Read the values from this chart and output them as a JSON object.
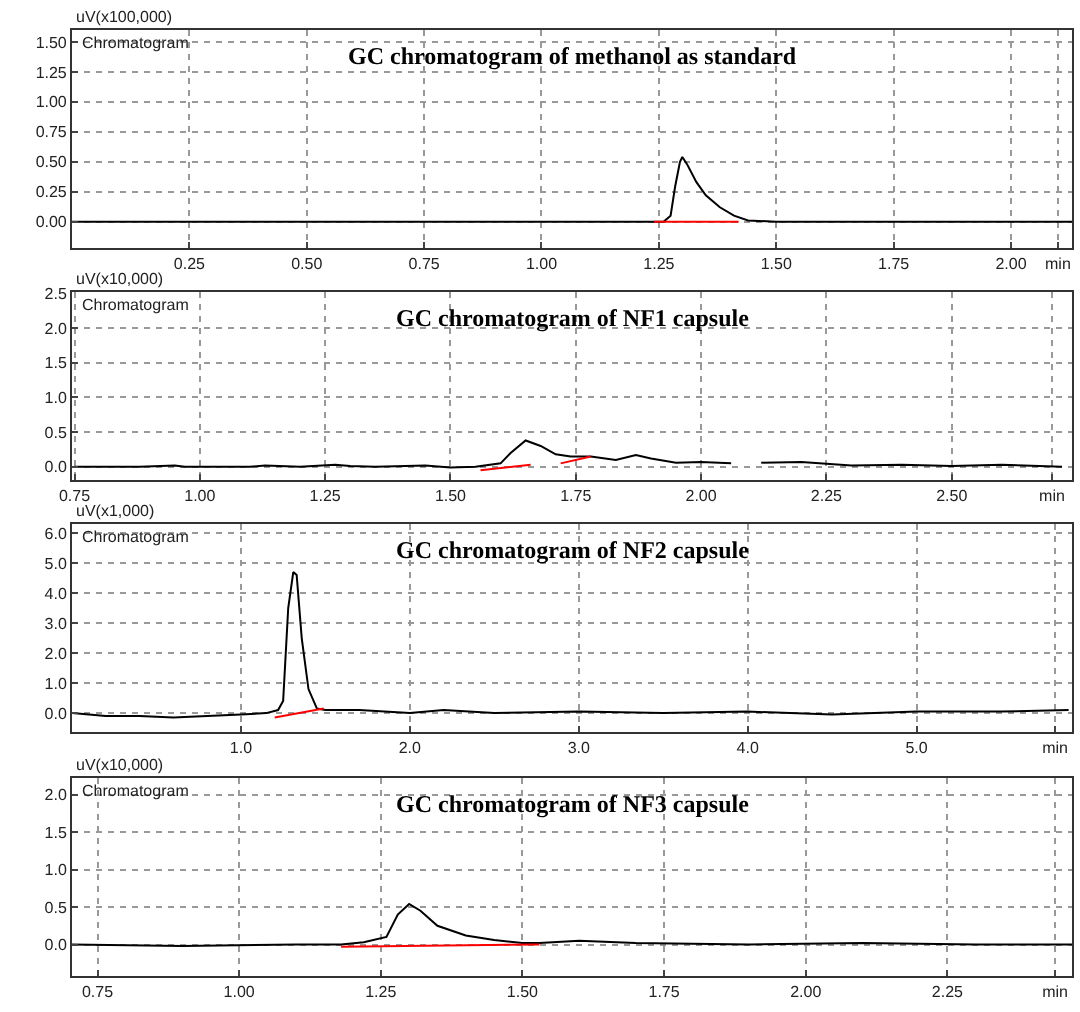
{
  "chart_data": [
    {
      "type": "line",
      "title": "GC chromatogram of methanol as standard",
      "ylabel": "uV(x100,000)",
      "annotations": [
        "Chromatogram"
      ],
      "grid": true,
      "marker": "none",
      "line_style": "solid",
      "xlim": [
        0,
        2.13
      ],
      "xticks": [
        {
          "value": 0.25,
          "label": "0.25"
        },
        {
          "value": 0.5,
          "label": "0.50"
        },
        {
          "value": 0.75,
          "label": "0.75"
        },
        {
          "value": 1.0,
          "label": "1.00"
        },
        {
          "value": 1.25,
          "label": "1.25"
        },
        {
          "value": 1.5,
          "label": "1.50"
        },
        {
          "value": 1.75,
          "label": "1.75"
        },
        {
          "value": 2.0,
          "label": "2.00"
        },
        {
          "value": 2.1,
          "label": "min"
        }
      ],
      "ylim": [
        -0.22,
        1.6
      ],
      "yticks": [
        {
          "value": 0,
          "label": "0.00"
        },
        {
          "value": 0.25,
          "label": "0.25"
        },
        {
          "value": 0.5,
          "label": "0.50"
        },
        {
          "value": 0.75,
          "label": "0.75"
        },
        {
          "value": 1.0,
          "label": "1.00"
        },
        {
          "value": 1.25,
          "label": "1.25"
        },
        {
          "value": 1.5,
          "label": "1.50"
        }
      ],
      "series": [
        {
          "color": "#000000",
          "x": [
            0,
            0.5,
            1.0,
            1.26,
            1.275,
            1.285,
            1.295,
            1.3,
            1.31,
            1.33,
            1.35,
            1.38,
            1.41,
            1.44,
            1.5,
            2.13
          ],
          "values": [
            0,
            0,
            0,
            0,
            0.05,
            0.3,
            0.5,
            0.54,
            0.48,
            0.33,
            0.22,
            0.12,
            0.05,
            0.01,
            0,
            0
          ]
        },
        {
          "color": "#ff0000",
          "x": [
            1.24,
            1.42
          ],
          "values": [
            0,
            0
          ]
        }
      ]
    },
    {
      "type": "line",
      "title": "GC chromatogram of NF1 capsule",
      "ylabel": "uV(x10,000)",
      "annotations": [
        "Chromatogram"
      ],
      "grid": true,
      "marker": "none",
      "line_style": "solid",
      "xlim": [
        0.745,
        2.74
      ],
      "xticks": [
        {
          "value": 0.75,
          "label": "0.75"
        },
        {
          "value": 1.0,
          "label": "1.00"
        },
        {
          "value": 1.25,
          "label": "1.25"
        },
        {
          "value": 1.5,
          "label": "1.50"
        },
        {
          "value": 1.75,
          "label": "1.75"
        },
        {
          "value": 2.0,
          "label": "2.00"
        },
        {
          "value": 2.25,
          "label": "2.25"
        },
        {
          "value": 2.5,
          "label": "2.50"
        },
        {
          "value": 2.7,
          "label": "min"
        }
      ],
      "ylim": [
        -0.19,
        2.52
      ],
      "yticks": [
        {
          "value": 0,
          "label": "0.0"
        },
        {
          "value": 0.5,
          "label": "0.5"
        },
        {
          "value": 1.0,
          "label": "1.0"
        },
        {
          "value": 1.5,
          "label": "1.5"
        },
        {
          "value": 2.0,
          "label": "2.0"
        },
        {
          "value": 2.5,
          "label": "2.5"
        }
      ],
      "series": [
        {
          "color": "#000000",
          "x": [
            0.75,
            0.88,
            0.95,
            0.97,
            1.0,
            1.1,
            1.13,
            1.2,
            1.27,
            1.3,
            1.35,
            1.45,
            1.5,
            1.55,
            1.6,
            1.62,
            1.65,
            1.68,
            1.71,
            1.74,
            1.78,
            1.83,
            1.87,
            1.9,
            1.95,
            2.0,
            2.06,
            2.08,
            2.12,
            2.2,
            2.3,
            2.4,
            2.5,
            2.6,
            2.72
          ],
          "values": [
            0,
            0,
            0.02,
            0,
            0,
            0,
            0.02,
            0,
            0.03,
            0.01,
            0,
            0.02,
            -0.01,
            0,
            0.05,
            0.2,
            0.38,
            0.3,
            0.18,
            0.15,
            0.15,
            0.1,
            0.17,
            0.12,
            0.06,
            0.07,
            0.05,
            null,
            0.06,
            0.07,
            0.02,
            0.03,
            0.01,
            0.03,
            0
          ]
        },
        {
          "color": "#ff0000",
          "x": [
            1.56,
            1.66
          ],
          "values": [
            -0.05,
            0.03
          ]
        },
        {
          "color": "#ff0000",
          "x": [
            1.72,
            1.78
          ],
          "values": [
            0.05,
            0.15
          ]
        }
      ]
    },
    {
      "type": "line",
      "title": "GC chromatogram of NF2 capsule",
      "ylabel": "uV(x1,000)",
      "annotations": [
        "Chromatogram"
      ],
      "grid": true,
      "marker": "none",
      "line_style": "solid",
      "xlim": [
        0,
        5.92
      ],
      "xticks": [
        {
          "value": 1,
          "label": "1.0"
        },
        {
          "value": 2,
          "label": "2.0"
        },
        {
          "value": 3,
          "label": "3.0"
        },
        {
          "value": 4,
          "label": "4.0"
        },
        {
          "value": 5,
          "label": "5.0"
        },
        {
          "value": 5.82,
          "label": "min"
        }
      ],
      "ylim": [
        -0.63,
        6.3
      ],
      "yticks": [
        {
          "value": 0,
          "label": "0.0"
        },
        {
          "value": 1,
          "label": "1.0"
        },
        {
          "value": 2,
          "label": "2.0"
        },
        {
          "value": 3,
          "label": "3.0"
        },
        {
          "value": 4,
          "label": "4.0"
        },
        {
          "value": 5,
          "label": "5.0"
        },
        {
          "value": 6,
          "label": "6.0"
        }
      ],
      "series": [
        {
          "color": "#000000",
          "x": [
            0,
            0.2,
            0.4,
            0.6,
            0.8,
            1.0,
            1.15,
            1.22,
            1.25,
            1.28,
            1.31,
            1.33,
            1.36,
            1.4,
            1.45,
            1.5,
            1.7,
            2.0,
            2.2,
            2.5,
            3.0,
            3.5,
            4.0,
            4.5,
            5.0,
            5.5,
            5.9
          ],
          "values": [
            0,
            -0.1,
            -0.1,
            -0.15,
            -0.1,
            -0.05,
            0,
            0.1,
            0.4,
            3.5,
            4.7,
            4.6,
            2.5,
            0.8,
            0.15,
            0.1,
            0.1,
            0,
            0.1,
            0,
            0.05,
            0,
            0.05,
            -0.05,
            0.05,
            0.05,
            0.1
          ]
        },
        {
          "color": "#ff0000",
          "x": [
            1.2,
            1.49
          ],
          "values": [
            -0.15,
            0.15
          ]
        }
      ]
    },
    {
      "type": "line",
      "title": "GC chromatogram of NF3 capsule",
      "ylabel": "uV(x10,000)",
      "annotations": [
        "Chromatogram"
      ],
      "grid": true,
      "marker": "none",
      "line_style": "solid",
      "xlim": [
        0.705,
        2.47
      ],
      "xticks": [
        {
          "value": 0.75,
          "label": "0.75"
        },
        {
          "value": 1.0,
          "label": "1.00"
        },
        {
          "value": 1.25,
          "label": "1.25"
        },
        {
          "value": 1.5,
          "label": "1.50"
        },
        {
          "value": 1.75,
          "label": "1.75"
        },
        {
          "value": 2.0,
          "label": "2.00"
        },
        {
          "value": 2.25,
          "label": "2.25"
        },
        {
          "value": 2.44,
          "label": "min"
        }
      ],
      "ylim": [
        -0.42,
        2.22
      ],
      "yticks": [
        {
          "value": 0,
          "label": "0.0"
        },
        {
          "value": 0.5,
          "label": "0.5"
        },
        {
          "value": 1.0,
          "label": "1.0"
        },
        {
          "value": 1.5,
          "label": "1.5"
        },
        {
          "value": 2.0,
          "label": "2.0"
        }
      ],
      "series": [
        {
          "color": "#000000",
          "x": [
            0.705,
            0.9,
            1.1,
            1.18,
            1.22,
            1.26,
            1.28,
            1.3,
            1.32,
            1.35,
            1.4,
            1.45,
            1.5,
            1.53,
            1.6,
            1.7,
            1.9,
            2.1,
            2.3,
            2.47
          ],
          "values": [
            0,
            -0.02,
            0,
            0,
            0.03,
            0.1,
            0.4,
            0.54,
            0.45,
            0.25,
            0.12,
            0.06,
            0.02,
            0.02,
            0.05,
            0.02,
            0,
            0.02,
            0,
            0
          ]
        },
        {
          "color": "#ff0000",
          "x": [
            1.18,
            1.53
          ],
          "values": [
            -0.03,
            0
          ]
        }
      ]
    }
  ]
}
